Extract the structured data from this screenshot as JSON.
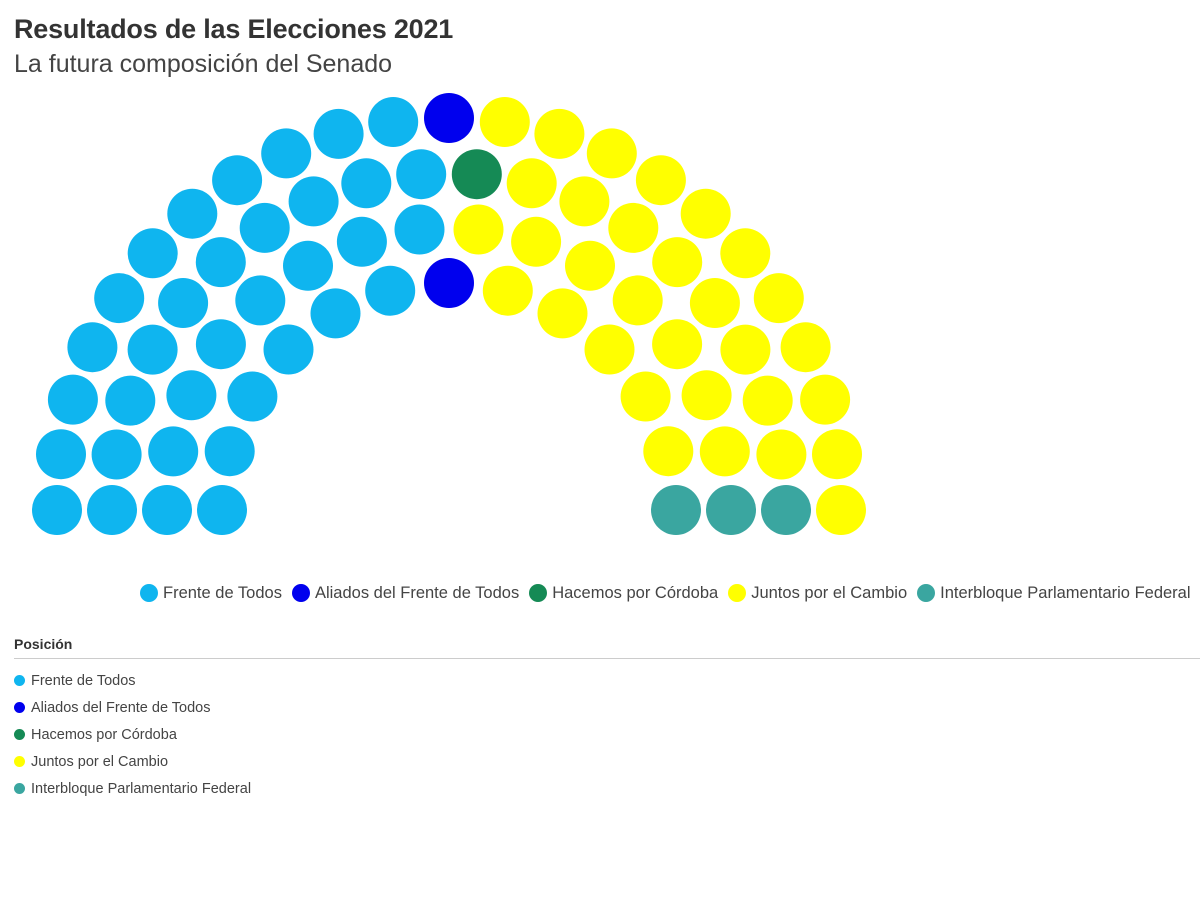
{
  "chart_data": {
    "type": "parliament",
    "title": "Resultados de las Elecciones 2021",
    "subtitle": "La futura composición del Senado",
    "total_seats": 72,
    "series": [
      {
        "name": "Frente de Todos",
        "value": 35,
        "color": "#0fb5ef"
      },
      {
        "name": "Aliados del Frente de Todos",
        "value": 2,
        "color": "#0000ee"
      },
      {
        "name": "Hacemos por Córdoba",
        "value": 1,
        "color": "#158a55"
      },
      {
        "name": "Juntos por el Cambio",
        "value": 31,
        "color": "#ffff00"
      },
      {
        "name": "Interbloque Parlamentario Federal",
        "value": 3,
        "color": "#3aa6a0"
      }
    ],
    "legend_position": "bottom"
  },
  "position_section": {
    "heading": "Posición",
    "items": [
      {
        "label": "Frente de Todos",
        "color": "#0fb5ef"
      },
      {
        "label": "Aliados del Frente de Todos",
        "color": "#0000ee"
      },
      {
        "label": "Hacemos por Córdoba",
        "color": "#158a55"
      },
      {
        "label": "Juntos por el Cambio",
        "color": "#ffff00"
      },
      {
        "label": "Interbloque Parlamentario Federal",
        "color": "#3aa6a0"
      }
    ]
  }
}
